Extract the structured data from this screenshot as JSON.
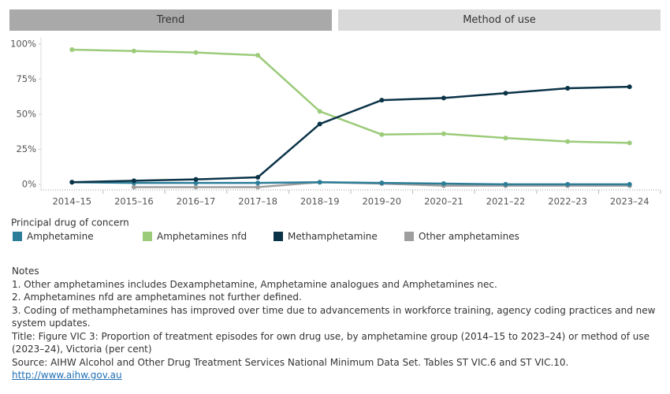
{
  "tabs": [
    "Trend",
    "Method of use"
  ],
  "chart_data": {
    "type": "line",
    "categories": [
      "2014–15",
      "2015–16",
      "2016–17",
      "2017–18",
      "2018–19",
      "2019–20",
      "2020–21",
      "2021–22",
      "2022–23",
      "2023–24"
    ],
    "series": [
      {
        "name": "Amphetamine",
        "color": "#2b7d98",
        "values": [
          1.5,
          1,
          1,
          1,
          1.5,
          1,
          0.5,
          0,
          0,
          0
        ]
      },
      {
        "name": "Amphetamines nfd",
        "color": "#9ccb7a",
        "values": [
          96,
          95,
          94,
          92,
          52,
          35.5,
          36,
          33,
          30.5,
          29.5
        ]
      },
      {
        "name": "Methamphetamine",
        "color": "#0b3347",
        "values": [
          1.5,
          2.5,
          3.5,
          5,
          43,
          60,
          61.5,
          65,
          68.5,
          69.5
        ]
      },
      {
        "name": "Other amphetamines",
        "color": "#9e9e9e",
        "values": [
          null,
          -2,
          -2,
          -2,
          1.5,
          0.5,
          -1,
          -1,
          -1,
          -1
        ]
      }
    ],
    "ylim": [
      -4,
      105
    ],
    "yticks": [
      {
        "value": 0,
        "label": "0%"
      },
      {
        "value": 25,
        "label": "25%"
      },
      {
        "value": 50,
        "label": "50%"
      },
      {
        "value": 75,
        "label": "75%"
      },
      {
        "value": 100,
        "label": "100%"
      }
    ],
    "legend_title": "Principal drug of concern"
  },
  "notes": {
    "heading": "Notes",
    "lines": [
      "1. Other amphetamines includes Dexamphetamine, Amphetamine analogues and Amphetamines nec.",
      "2. Amphetamines nfd are amphetamines not further defined.",
      "3. Coding of methamphetamines has improved over time due to advancements in workforce training, agency coding practices and new system updates.",
      "Title: Figure VIC 3: Proportion of treatment episodes for own drug use, by amphetamine group (2014–15 to 2023–24) or method of use (2023–24), Victoria (per cent)",
      "Source: AIHW Alcohol and Other Drug Treatment Services National Minimum Data Set. Tables ST VIC.6 and ST VIC.10."
    ],
    "link": "http://www.aihw.gov.au"
  }
}
